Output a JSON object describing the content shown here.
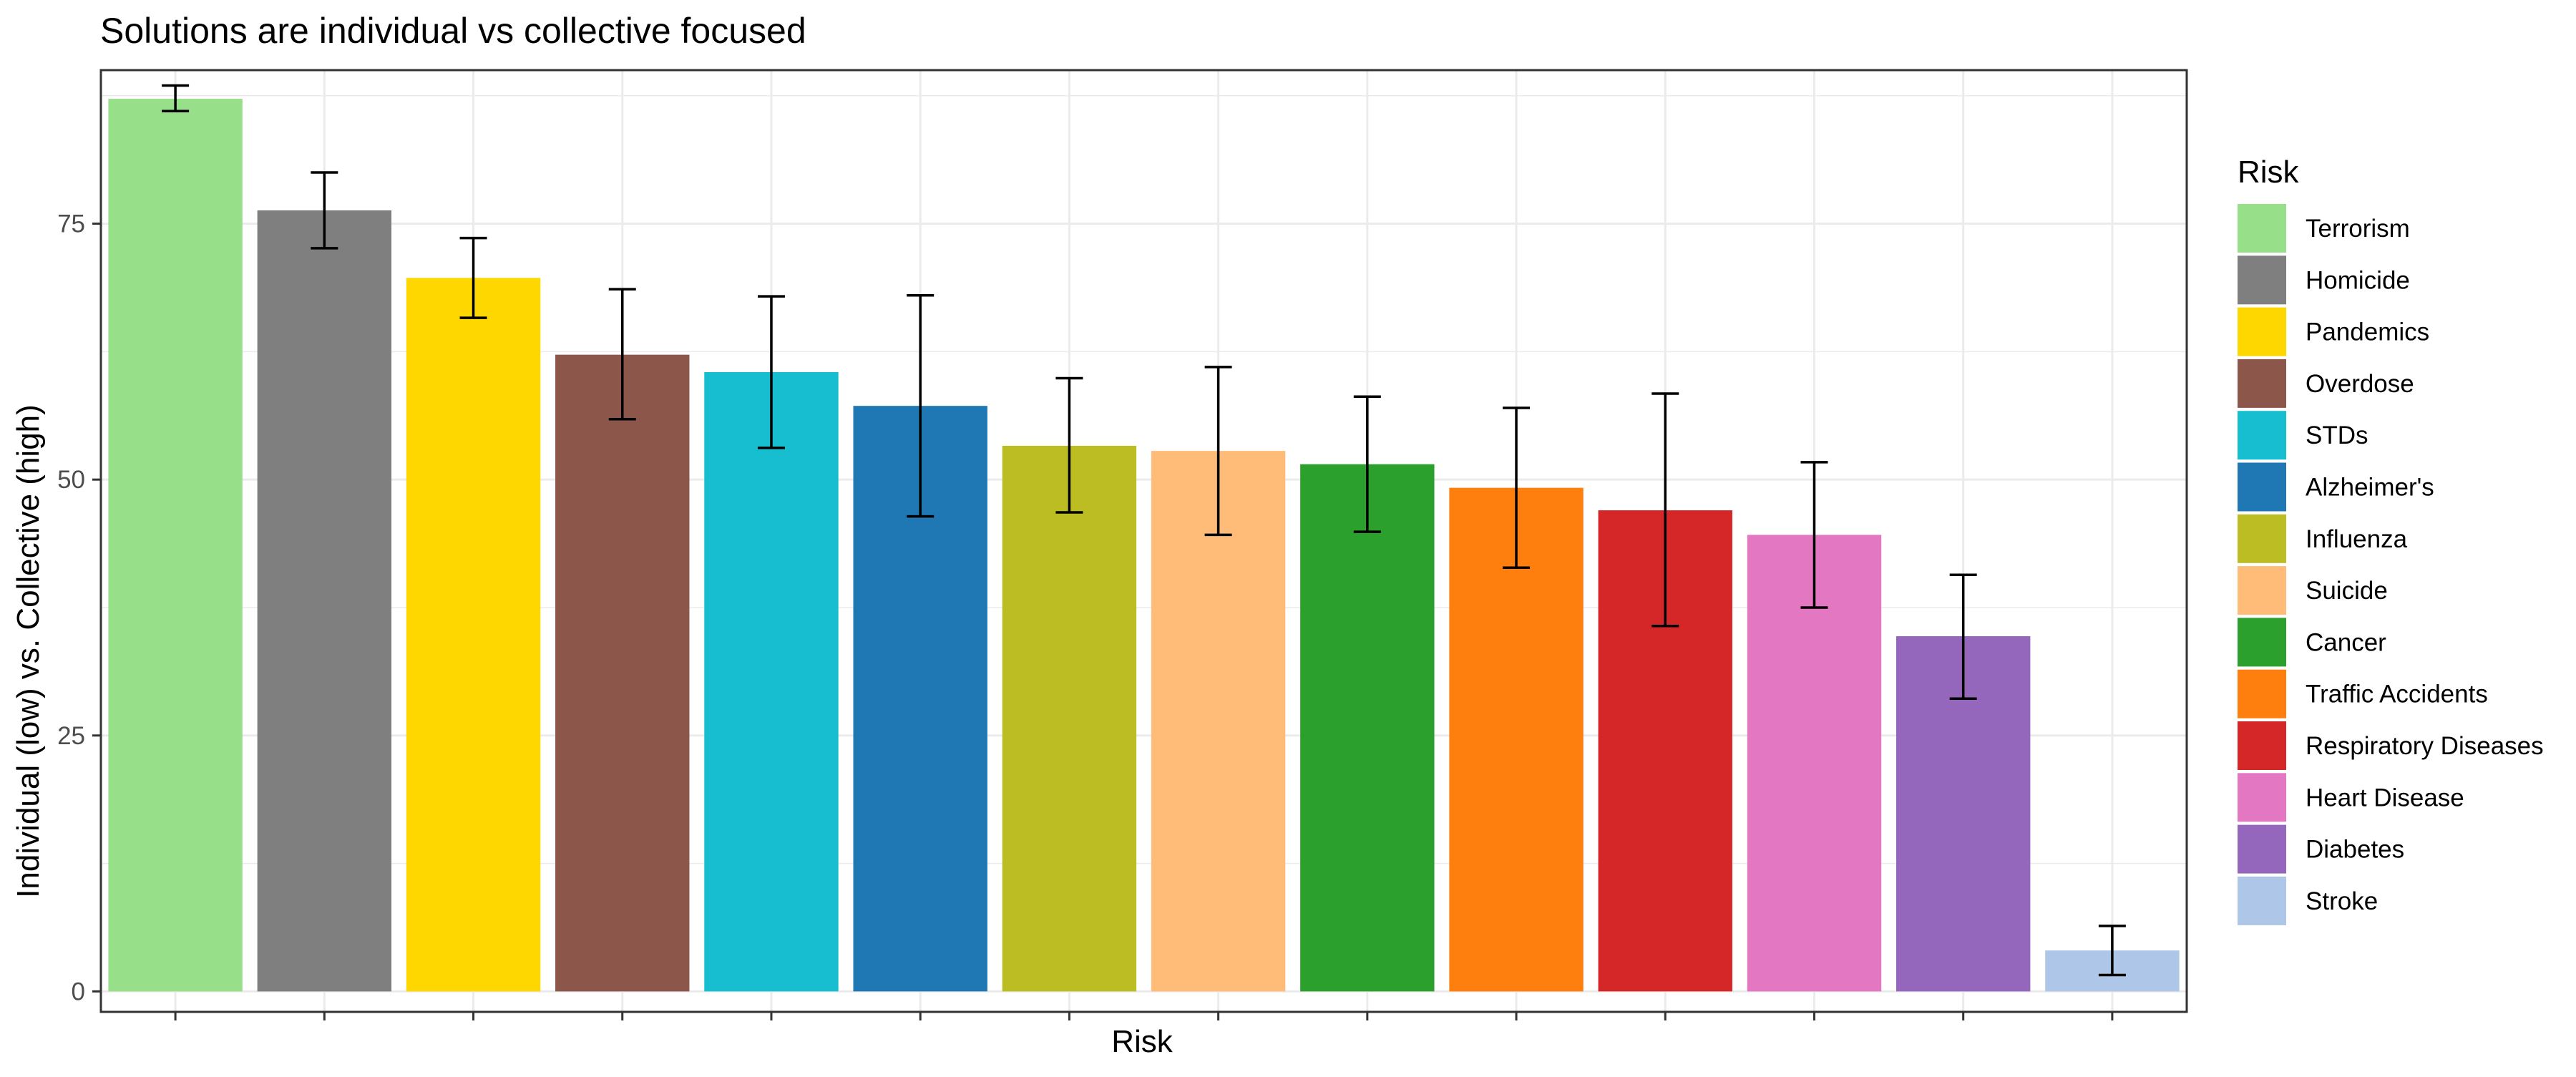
{
  "chart_data": {
    "type": "bar",
    "title": "Solutions are individual vs collective focused",
    "xlabel": "Risk",
    "ylabel": "Individual (low) vs. Collective (high)",
    "ylim": [
      -2,
      90
    ],
    "yticks": [
      0,
      25,
      50,
      75
    ],
    "grid": true,
    "legend_title": "Risk",
    "legend_position": "right",
    "categories": [
      "Terrorism",
      "Homicide",
      "Pandemics",
      "Overdose",
      "STDs",
      "Alzheimer's",
      "Influenza",
      "Suicide",
      "Cancer",
      "Traffic Accidents",
      "Respiratory Diseases",
      "Heart Disease",
      "Diabetes",
      "Stroke"
    ],
    "values": [
      87.2,
      76.3,
      69.7,
      62.2,
      60.5,
      57.2,
      53.3,
      52.8,
      51.5,
      49.2,
      47.0,
      44.6,
      34.7,
      4.0
    ],
    "error_low": [
      86.0,
      72.6,
      65.8,
      55.9,
      53.1,
      46.4,
      46.8,
      44.6,
      44.9,
      41.4,
      35.7,
      37.5,
      28.6,
      1.6
    ],
    "error_high": [
      88.5,
      80.0,
      73.6,
      68.6,
      67.9,
      68.0,
      59.9,
      61.0,
      58.1,
      57.0,
      58.4,
      51.7,
      40.7,
      6.4
    ],
    "colors": [
      "#98DF8A",
      "#7F7F7F",
      "#FFD700",
      "#8C564B",
      "#17BECF",
      "#1F77B4",
      "#BCBD22",
      "#FFBB78",
      "#2CA02C",
      "#FF7F0E",
      "#D62728",
      "#E377C2",
      "#9467BD",
      "#AEC7E8"
    ]
  }
}
